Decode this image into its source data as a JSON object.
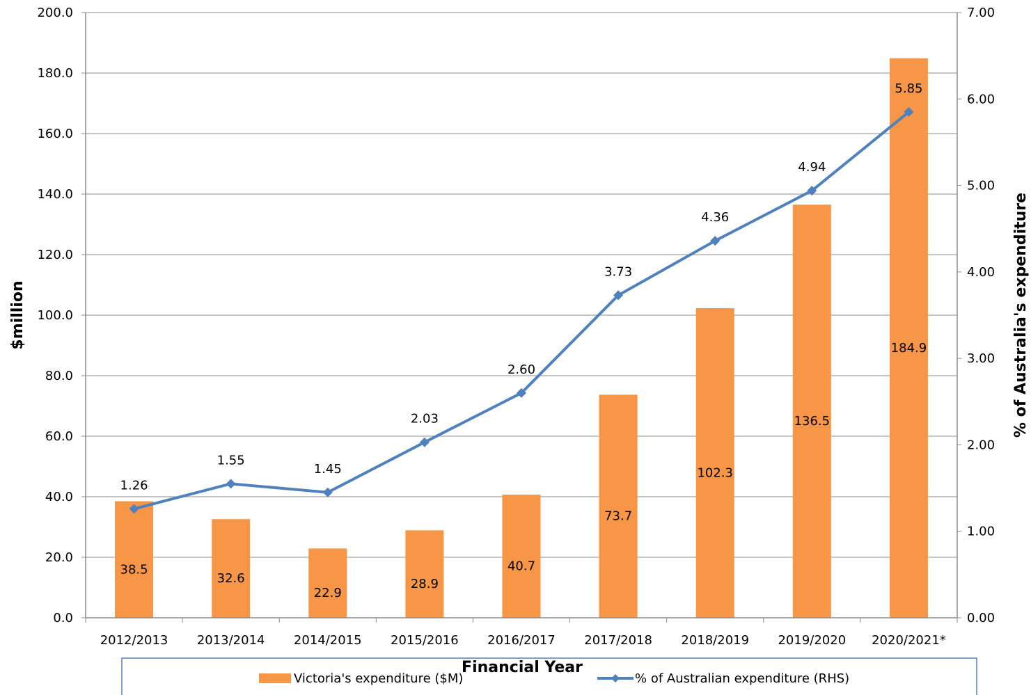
{
  "chart_data": {
    "type": "bar",
    "categories": [
      "2012/2013",
      "2013/2014",
      "2014/2015",
      "2015/2016",
      "2016/2017",
      "2017/2018",
      "2018/2019",
      "2019/2020",
      "2020/2021*"
    ],
    "series": [
      {
        "name": "Victoria's expenditure ($M)",
        "type": "bar",
        "axis": "left",
        "color": "#F79646",
        "values": [
          38.5,
          32.6,
          22.9,
          28.9,
          40.7,
          73.7,
          102.3,
          136.5,
          184.9
        ],
        "labels": [
          "38.5",
          "32.6",
          "22.9",
          "28.9",
          "40.7",
          "73.7",
          "102.3",
          "136.5",
          "184.9"
        ]
      },
      {
        "name": "% of Australian expenditure (RHS)",
        "type": "line",
        "axis": "right",
        "color": "#4F81BD",
        "marker": "diamond",
        "values": [
          1.26,
          1.55,
          1.45,
          2.03,
          2.6,
          3.73,
          4.36,
          4.94,
          5.85
        ],
        "labels": [
          "1.26",
          "1.55",
          "1.45",
          "2.03",
          "2.60",
          "3.73",
          "4.36",
          "4.94",
          "5.85"
        ]
      }
    ],
    "xlabel": "Financial Year",
    "ylabel": "$million",
    "y2label": "% of Australia's expenditure",
    "ylim": [
      0,
      200
    ],
    "y2lim": [
      0,
      7
    ],
    "yticks": [
      "0.0",
      "20.0",
      "40.0",
      "60.0",
      "80.0",
      "100.0",
      "120.0",
      "140.0",
      "160.0",
      "180.0",
      "200.0"
    ],
    "y2ticks": [
      "0.00",
      "1.00",
      "2.00",
      "3.00",
      "4.00",
      "5.00",
      "6.00",
      "7.00"
    ],
    "grid": true,
    "legend": "bottom"
  }
}
